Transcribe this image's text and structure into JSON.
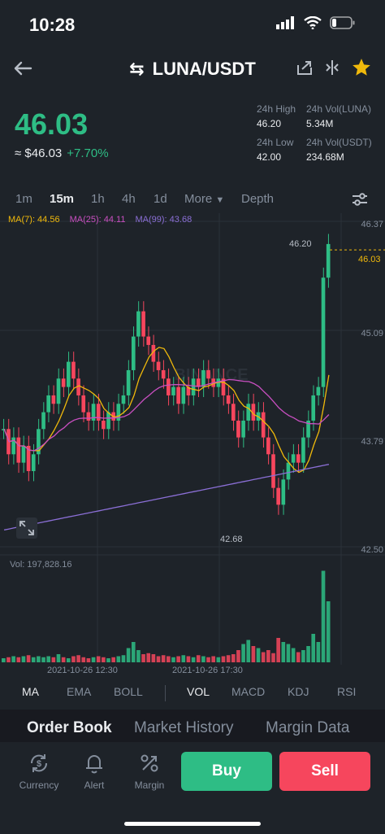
{
  "status": {
    "time": "10:28"
  },
  "header": {
    "title": "LUNA/USDT"
  },
  "price": {
    "last": "46.03",
    "fiat": "≈ $46.03",
    "change": "+7.70%"
  },
  "stats": {
    "high_label": "24h High",
    "high": "46.20",
    "low_label": "24h Low",
    "low": "42.00",
    "vol_base_label": "24h Vol(LUNA)",
    "vol_base": "5.34M",
    "vol_quote_label": "24h Vol(USDT)",
    "vol_quote": "234.68M"
  },
  "intervals": [
    "1m",
    "15m",
    "1h",
    "4h",
    "1d",
    "More",
    "Depth"
  ],
  "active_interval": "15m",
  "ma_legend": {
    "ma7": "MA(7): 44.56",
    "ma25": "MA(25): 44.11",
    "ma99": "MA(99): 43.68"
  },
  "colors": {
    "up": "#2ebd85",
    "down": "#f6465d",
    "ma7": "#f0b90b",
    "ma25": "#c94fc1",
    "ma99": "#8b6fd6",
    "bg": "#1e2329"
  },
  "chart": {
    "watermark": "BINANCE",
    "price_axis": [
      "46.37",
      "45.09",
      "43.79",
      "42.50"
    ],
    "high_marker": "46.20",
    "low_marker": "42.68",
    "last_price_tag": "46.03",
    "volume_label": "Vol: 197,828.16",
    "time_labels": [
      "2021-10-26 12:30",
      "2021-10-26 17:30"
    ]
  },
  "indicators": [
    "MA",
    "EMA",
    "BOLL",
    "VOL",
    "MACD",
    "KDJ",
    "RSI"
  ],
  "bottom_tabs": [
    "Order Book",
    "Market History",
    "Margin Data"
  ],
  "toolbar": {
    "currency": "Currency",
    "alert": "Alert",
    "margin": "Margin",
    "buy": "Buy",
    "sell": "Sell"
  }
}
